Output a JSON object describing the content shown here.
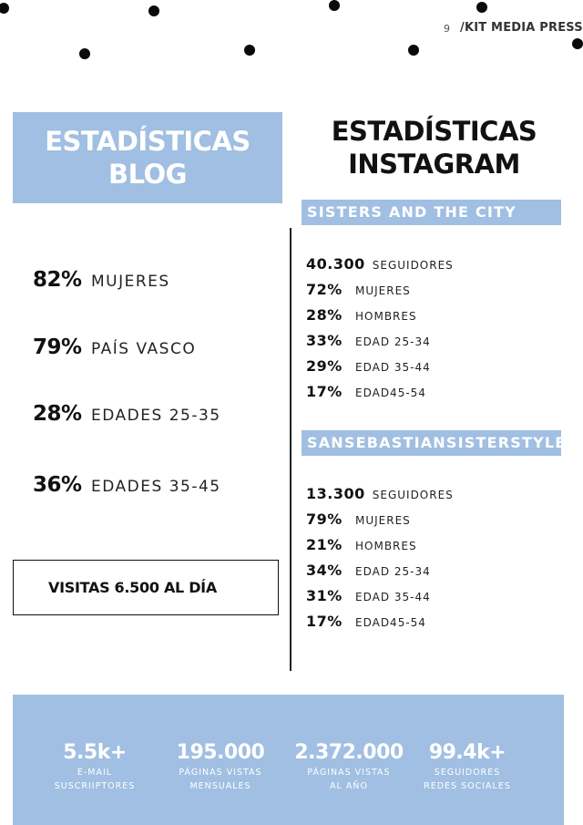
{
  "header": {
    "page_number": "9",
    "brand": "/KIT MEDIA PRESS"
  },
  "blog": {
    "title_line1": "ESTADÍSTICAS",
    "title_line2": "BLOG",
    "stats": [
      {
        "pct": "82%",
        "label": "MUJERES"
      },
      {
        "pct": "79%",
        "label": "PAÍS VASCO"
      },
      {
        "pct": "28%",
        "label": "EDADES 25-35"
      },
      {
        "pct": "36%",
        "label": "EDADES 35-45"
      }
    ],
    "visits": "VISITAS 6.500 AL DÍA"
  },
  "instagram": {
    "title_line1": "ESTADÍSTICAS",
    "title_line2": "INSTAGRAM",
    "accounts": [
      {
        "name": "SISTERS AND THE CITY",
        "followers": {
          "value": "40.300",
          "label": "SEGUIDORES"
        },
        "stats": [
          {
            "pct": "72%",
            "label": "MUJERES"
          },
          {
            "pct": "28%",
            "label": "HOMBRES"
          },
          {
            "pct": "33%",
            "label": "EDAD 25-34"
          },
          {
            "pct": "29%",
            "label": "EDAD 35-44"
          },
          {
            "pct": "17%",
            "label": "EDAD45-54"
          }
        ]
      },
      {
        "name": "SANSEBASTIANSISTERSTYLE",
        "followers": {
          "value": "13.300",
          "label": "SEGUIDORES"
        },
        "stats": [
          {
            "pct": "79%",
            "label": "MUJERES"
          },
          {
            "pct": "21%",
            "label": "HOMBRES"
          },
          {
            "pct": "34%",
            "label": "EDAD 25-34"
          },
          {
            "pct": "31%",
            "label": "EDAD 35-44"
          },
          {
            "pct": "17%",
            "label": "EDAD45-54"
          }
        ]
      }
    ]
  },
  "footer": [
    {
      "value": "5.5k+",
      "caption1": "E-MAIL",
      "caption2": "SUSCRIIPTORES"
    },
    {
      "value": "195.000",
      "caption1": "PÁGINAS VISTAS",
      "caption2": "MENSUALES"
    },
    {
      "value": "2.372.000",
      "caption1": "PÁGINAS VISTAS",
      "caption2": "AL AÑO"
    },
    {
      "value": "99.4k+",
      "caption1": "SEGUIDORES",
      "caption2": "REDES SOCIALES"
    }
  ],
  "colors": {
    "accent": "#a0bfe2",
    "text": "#111111",
    "dots": "#0a0a0a"
  }
}
